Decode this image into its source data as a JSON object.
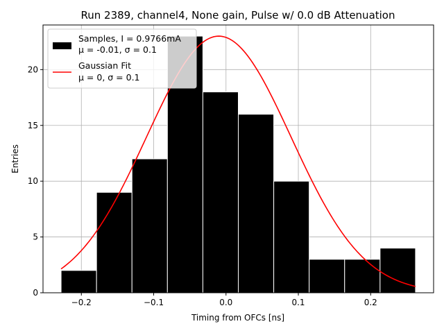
{
  "chart_data": {
    "type": "bar",
    "title": "Run 2389, channel4, None gain, Pulse w/ 0.0 dB Attenuation",
    "xlabel": "Timing from OFCs [ns]",
    "ylabel": "Entries",
    "xlim": [
      -0.253,
      0.287
    ],
    "ylim": [
      0,
      24
    ],
    "xticks": [
      -0.2,
      -0.1,
      0.0,
      0.1,
      0.2
    ],
    "xtick_labels": [
      "−0.2",
      "−0.1",
      "0.0",
      "0.1",
      "0.2"
    ],
    "yticks": [
      0,
      5,
      10,
      15,
      20
    ],
    "ytick_labels": [
      "0",
      "5",
      "10",
      "15",
      "20"
    ],
    "grid": true,
    "legend_position": "top-left",
    "bins": [
      {
        "x0": -0.228,
        "x1": -0.179,
        "count": 2
      },
      {
        "x0": -0.179,
        "x1": -0.13,
        "count": 9
      },
      {
        "x0": -0.13,
        "x1": -0.081,
        "count": 12
      },
      {
        "x0": -0.081,
        "x1": -0.032,
        "count": 23
      },
      {
        "x0": -0.032,
        "x1": 0.017,
        "count": 18
      },
      {
        "x0": 0.017,
        "x1": 0.066,
        "count": 16
      },
      {
        "x0": 0.066,
        "x1": 0.115,
        "count": 10
      },
      {
        "x0": 0.115,
        "x1": 0.164,
        "count": 3
      },
      {
        "x0": 0.164,
        "x1": 0.213,
        "count": 3
      },
      {
        "x0": 0.213,
        "x1": 0.262,
        "count": 4
      }
    ],
    "series": [
      {
        "name": "Samples",
        "kind": "histogram",
        "color": "#000000"
      },
      {
        "name": "Gaussian Fit",
        "kind": "line",
        "color": "#ff0000",
        "amplitude": 23,
        "mean": -0.01,
        "sigma": 0.1,
        "x_start": -0.228,
        "x_end": 0.262
      }
    ],
    "legend": [
      {
        "line1": "Samples, I = 0.9766mA",
        "line2_prefix": "μ = -0.01, ",
        "line2_suffix": "σ = 0.1"
      },
      {
        "line1": "Gaussian Fit",
        "line2_prefix": "μ = 0, ",
        "line2_suffix": "σ = 0.1"
      }
    ],
    "colors": {
      "bar": "#000000",
      "fit": "#ff0000",
      "grid": "#b0b0b0",
      "bar_edge": "#ffffff"
    }
  }
}
